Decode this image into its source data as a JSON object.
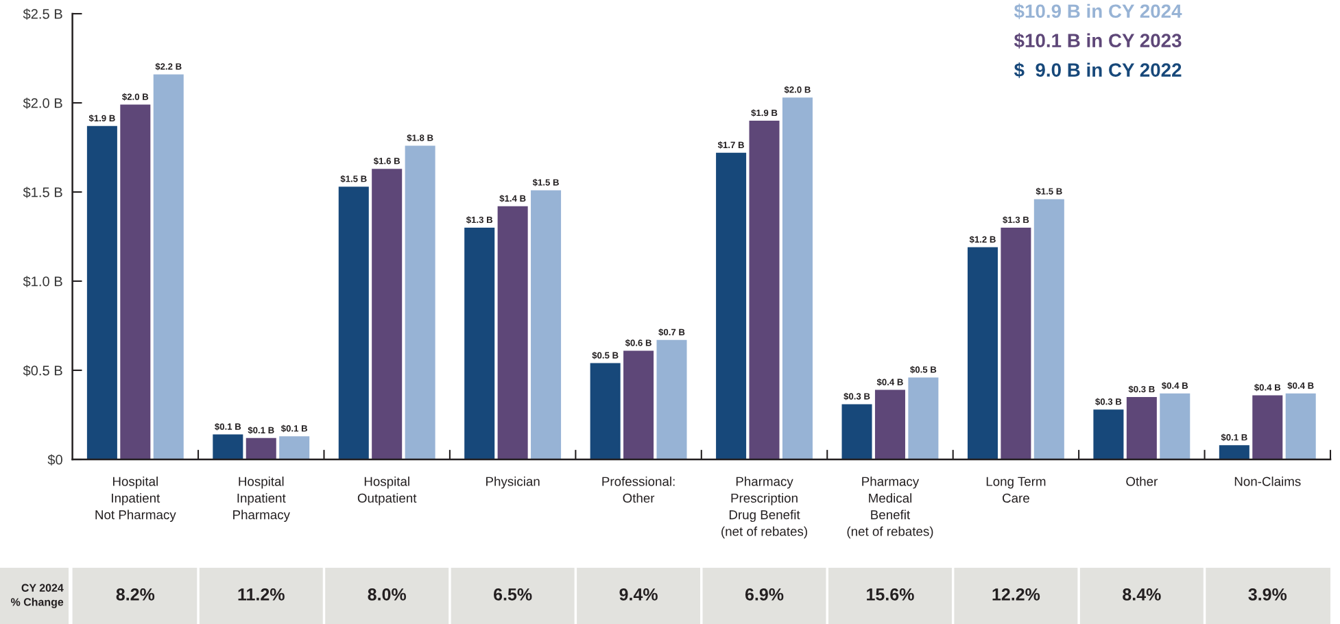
{
  "chart_data": [
    {
      "type": "bar",
      "categories": [
        "Hospital\nInpatient\nNot Pharmacy",
        "Hospital\nInpatient\nPharmacy",
        "Hospital\nOutpatient",
        "Physician",
        "Professional:\nOther",
        "Pharmacy\nPrescription\nDrug Benefit\n(net of rebates)",
        "Pharmacy\nMedical\nBenefit\n(net of rebates)",
        "Long Term\nCare",
        "Other",
        "Non-Claims"
      ],
      "series": [
        {
          "name": "$  9.0 B in CY 2022",
          "color": "#17487a",
          "values": [
            1.87,
            0.14,
            1.53,
            1.3,
            0.54,
            1.72,
            0.31,
            1.19,
            0.28,
            0.08
          ],
          "value_labels": [
            "$1.9 B",
            "$0.1 B",
            "$1.5 B",
            "$1.3 B",
            "$0.5 B",
            "$1.7 B",
            "$0.3 B",
            "$1.2 B",
            "$0.3 B",
            "$0.1 B"
          ]
        },
        {
          "name": "$10.1 B in CY 2023",
          "color": "#5e4778",
          "values": [
            1.99,
            0.12,
            1.63,
            1.42,
            0.61,
            1.9,
            0.39,
            1.3,
            0.35,
            0.36
          ],
          "value_labels": [
            "$2.0 B",
            "$0.1 B",
            "$1.6 B",
            "$1.4 B",
            "$0.6 B",
            "$1.9 B",
            "$0.4 B",
            "$1.3 B",
            "$0.3 B",
            "$0.4 B"
          ]
        },
        {
          "name": "$10.9 B in CY 2024",
          "color": "#97b3d5",
          "values": [
            2.16,
            0.13,
            1.76,
            1.51,
            0.67,
            2.03,
            0.46,
            1.46,
            0.37,
            0.37
          ],
          "value_labels": [
            "$2.2 B",
            "$0.1 B",
            "$1.8 B",
            "$1.5 B",
            "$0.7 B",
            "$2.0 B",
            "$0.5 B",
            "$1.5 B",
            "$0.4 B",
            "$0.4 B"
          ]
        }
      ],
      "ylim": [
        0,
        2.5
      ],
      "yticks": [
        {
          "value": 0,
          "label": "$0"
        },
        {
          "value": 0.5,
          "label": "$0.5 B"
        },
        {
          "value": 1.0,
          "label": "$1.0 B"
        },
        {
          "value": 1.5,
          "label": "$1.5 B"
        },
        {
          "value": 2.0,
          "label": "$2.0 B"
        },
        {
          "value": 2.5,
          "label": "$2.5 B"
        }
      ],
      "legend": "top right"
    },
    {
      "type": "other",
      "ylabel": "CY 2024\n% Change",
      "annotations": [
        "8.2%",
        "11.2%",
        "8.0%",
        "6.5%",
        "9.4%",
        "6.9%",
        "15.6%",
        "12.2%",
        "8.4%",
        "3.9%"
      ]
    }
  ]
}
